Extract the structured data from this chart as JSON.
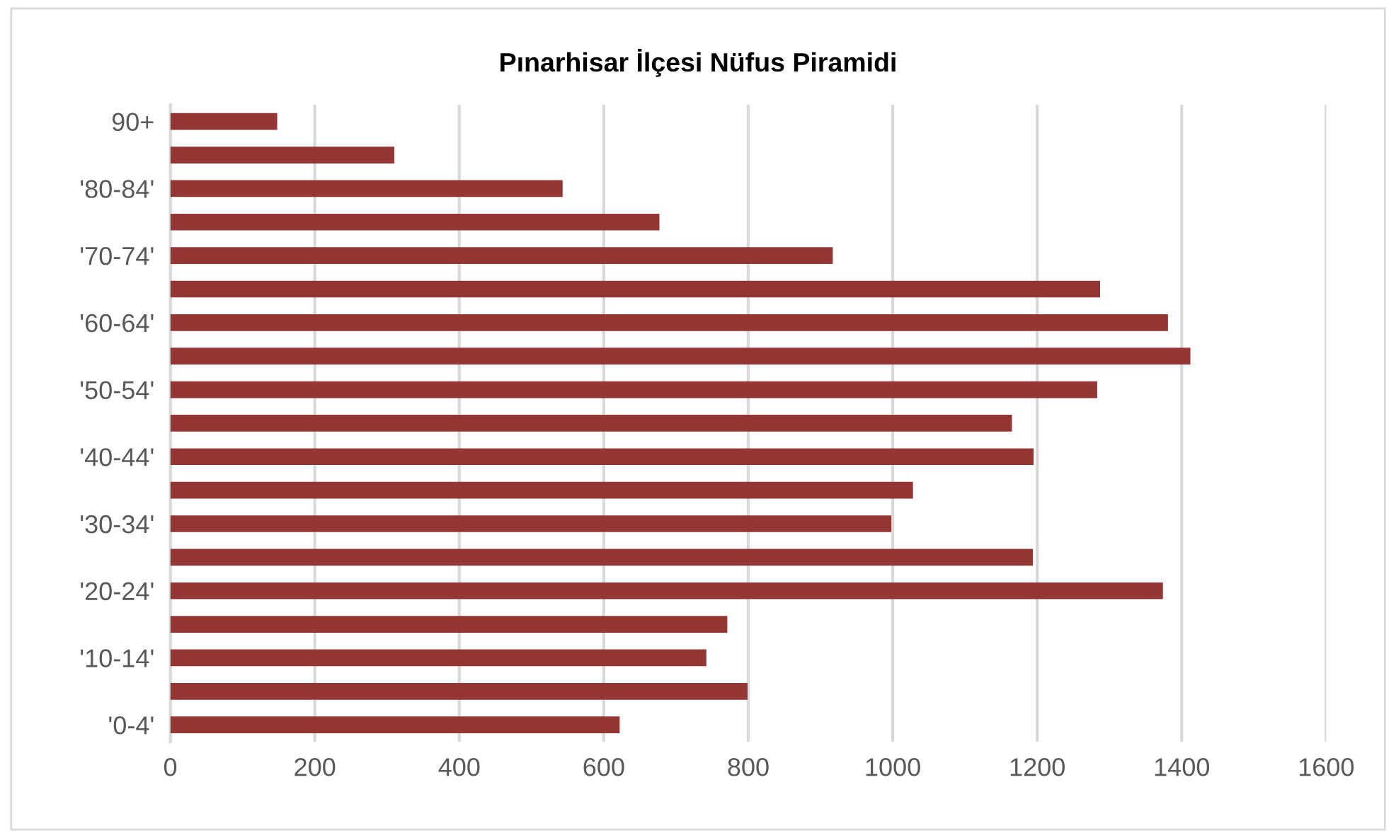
{
  "chart_data": {
    "type": "bar",
    "orientation": "horizontal",
    "title": "Pınarhisar İlçesi Nüfus Piramidi",
    "categories": [
      "90+",
      null,
      "'80-84'",
      null,
      "'70-74'",
      null,
      "'60-64'",
      null,
      "'50-54'",
      null,
      "'40-44'",
      null,
      "'30-34'",
      null,
      "'20-24'",
      null,
      "'10-14'",
      null,
      "'0-4'"
    ],
    "values": [
      148,
      310,
      543,
      677,
      917,
      1287,
      1381,
      1412,
      1283,
      1165,
      1195,
      1028,
      998,
      1194,
      1374,
      771,
      742,
      799,
      622
    ],
    "color": "#943634",
    "xlim": [
      0,
      1600
    ],
    "xticks": [
      0,
      200,
      400,
      600,
      800,
      1000,
      1200,
      1400,
      1600
    ],
    "grid": "x",
    "legend": false
  }
}
